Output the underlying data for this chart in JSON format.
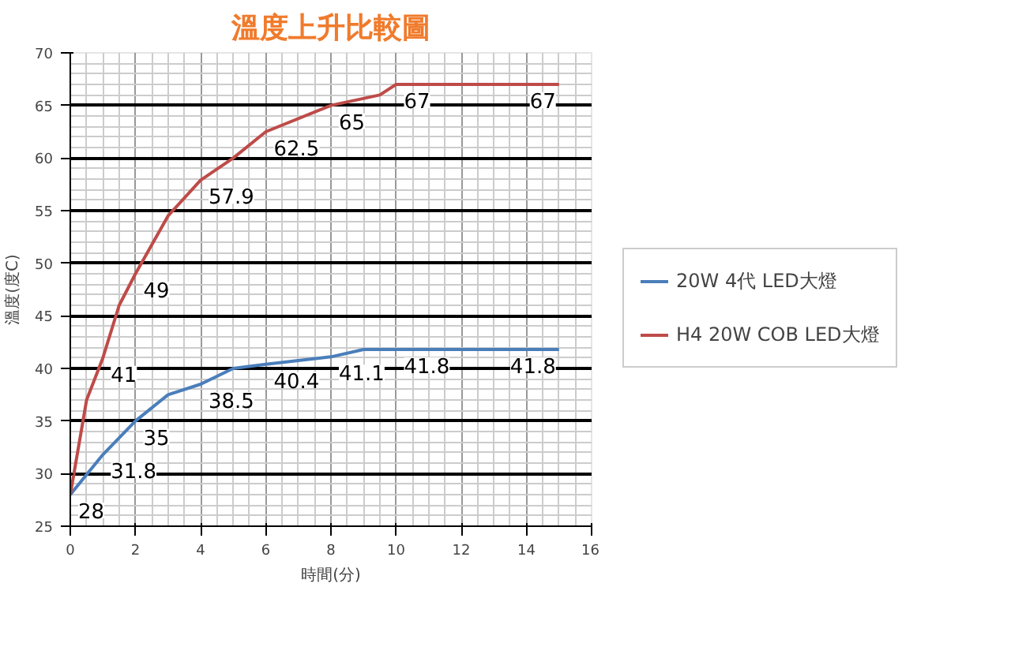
{
  "chart_data": {
    "type": "line",
    "title": "溫度上升比較圖",
    "xlabel": "時間(分)",
    "ylabel": "溫度(度C)",
    "xlim": [
      0,
      16
    ],
    "xticks": [
      0,
      2,
      4,
      6,
      8,
      10,
      12,
      14,
      16
    ],
    "ylim": [
      25,
      70
    ],
    "yticks": [
      25,
      30,
      35,
      40,
      45,
      50,
      55,
      60,
      65,
      70
    ],
    "grid": true,
    "legend": "right",
    "line_style": "solid",
    "series": [
      {
        "name": "20W 4代 LED大燈",
        "color": "#4a7ebb",
        "x": [
          0,
          1,
          2,
          3,
          4,
          5,
          6,
          8,
          9,
          10,
          15
        ],
        "values": [
          28,
          31.8,
          35,
          37.5,
          38.5,
          40,
          40.4,
          41.1,
          41.8,
          41.8,
          41.8
        ],
        "value_labels": [
          "28",
          "31.8",
          "35",
          null,
          "38.5",
          null,
          "40.4",
          "41.1",
          null,
          "41.8",
          "41.8"
        ]
      },
      {
        "name": "H4 20W COB LED大燈",
        "color": "#be4b48",
        "x": [
          0,
          0.5,
          1,
          1.5,
          2,
          3,
          4,
          5,
          6,
          8,
          9.5,
          10,
          15
        ],
        "values": [
          28,
          37,
          41,
          46,
          49,
          54.5,
          57.9,
          60,
          62.5,
          65,
          66,
          67,
          67
        ],
        "value_labels": [
          null,
          null,
          "41",
          null,
          "49",
          null,
          "57.9",
          null,
          "62.5",
          "65",
          null,
          "67",
          "67"
        ]
      }
    ]
  }
}
